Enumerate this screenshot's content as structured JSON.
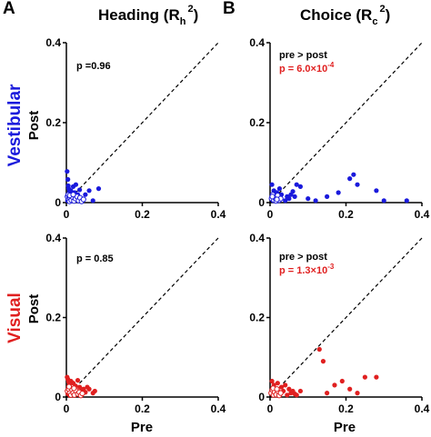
{
  "panel_letters": {
    "a": "A",
    "b": "B"
  },
  "column_titles": {
    "heading": {
      "text": "Heading (R",
      "sub": "h",
      "sup": "2",
      "close": ")"
    },
    "choice": {
      "text": "Choice (R",
      "sub": "c",
      "sup": "2",
      "close": ")"
    }
  },
  "row_labels": {
    "vestibular": {
      "text": "Vestibular",
      "color": "#1a1adc"
    },
    "visual": {
      "text": "Visual",
      "color": "#e02020"
    }
  },
  "axis_labels": {
    "y": "Post",
    "x": "Pre"
  },
  "colors": {
    "vestibular": "#1a1adc",
    "visual": "#e02020",
    "significant_text": "#e02020"
  },
  "panels": {
    "vest_heading": {
      "p_text": "p =0.96"
    },
    "vest_choice": {
      "line1": "pre > post",
      "line2_prefix": "p = 6.0×10",
      "line2_exp": "-4"
    },
    "vis_heading": {
      "p_text": "p = 0.85"
    },
    "vis_choice": {
      "line1": "pre > post",
      "line2_prefix": "p = 1.3×10",
      "line2_exp": "-3"
    }
  },
  "chart_data": [
    {
      "type": "scatter",
      "title": "Heading (Rh²) – Vestibular",
      "xlabel": "",
      "ylabel": "Post",
      "xlim": [
        0,
        0.4
      ],
      "ylim": [
        0,
        0.4
      ],
      "xticks": [
        "0",
        "0.2",
        "0.4"
      ],
      "yticks": [
        "0",
        "0.2",
        "0.4"
      ],
      "reference_line": "y = x (dashed)",
      "series": [
        {
          "style": "filled",
          "color": "#1a1adc",
          "points": [
            [
              0.002,
              0.078
            ],
            [
              0.004,
              0.058
            ],
            [
              0.005,
              0.042
            ],
            [
              0.006,
              0.035
            ],
            [
              0.008,
              0.028
            ],
            [
              0.01,
              0.022
            ],
            [
              0.012,
              0.03
            ],
            [
              0.015,
              0.018
            ],
            [
              0.018,
              0.04
            ],
            [
              0.02,
              0.012
            ],
            [
              0.022,
              0.025
            ],
            [
              0.025,
              0.045
            ],
            [
              0.028,
              0.008
            ],
            [
              0.03,
              0.02
            ],
            [
              0.035,
              0.032
            ],
            [
              0.04,
              0.01
            ],
            [
              0.05,
              0.02
            ],
            [
              0.06,
              0.03
            ],
            [
              0.07,
              0.005
            ],
            [
              0.085,
              0.035
            ],
            [
              0.003,
              0.005
            ],
            [
              0.007,
              0.01
            ],
            [
              0.012,
              0.004
            ],
            [
              0.016,
              0.006
            ]
          ]
        },
        {
          "style": "open",
          "color": "#1a1adc",
          "points": [
            [
              0.003,
              0.015
            ],
            [
              0.006,
              0.008
            ],
            [
              0.008,
              0.003
            ],
            [
              0.01,
              0.012
            ],
            [
              0.013,
              0.006
            ],
            [
              0.016,
              0.014
            ],
            [
              0.02,
              0.004
            ],
            [
              0.024,
              0.01
            ],
            [
              0.028,
              0.015
            ],
            [
              0.032,
              0.005
            ],
            [
              0.036,
              0.012
            ],
            [
              0.04,
              0.003
            ],
            [
              0.045,
              0.008
            ],
            [
              0.005,
              0.02
            ],
            [
              0.009,
              0.018
            ],
            [
              0.018,
              0.02
            ]
          ]
        }
      ]
    },
    {
      "type": "scatter",
      "title": "Choice (Rc²) – Vestibular",
      "xlabel": "",
      "ylabel": "",
      "xlim": [
        0,
        0.4
      ],
      "ylim": [
        0,
        0.4
      ],
      "xticks": [
        "0",
        "0.2",
        "0.4"
      ],
      "yticks": [
        "0",
        "0.2",
        "0.4"
      ],
      "reference_line": "y = x (dashed)",
      "series": [
        {
          "style": "filled",
          "color": "#1a1adc",
          "points": [
            [
              0.005,
              0.045
            ],
            [
              0.01,
              0.03
            ],
            [
              0.012,
              0.015
            ],
            [
              0.018,
              0.025
            ],
            [
              0.02,
              0.01
            ],
            [
              0.025,
              0.035
            ],
            [
              0.03,
              0.02
            ],
            [
              0.04,
              0.005
            ],
            [
              0.045,
              0.015
            ],
            [
              0.05,
              0.01
            ],
            [
              0.055,
              0.02
            ],
            [
              0.06,
              0.028
            ],
            [
              0.065,
              0.015
            ],
            [
              0.07,
              0.045
            ],
            [
              0.08,
              0.04
            ],
            [
              0.1,
              0.01
            ],
            [
              0.12,
              0.005
            ],
            [
              0.15,
              0.015
            ],
            [
              0.18,
              0.025
            ],
            [
              0.21,
              0.06
            ],
            [
              0.22,
              0.07
            ],
            [
              0.23,
              0.045
            ],
            [
              0.28,
              0.03
            ],
            [
              0.3,
              0.005
            ],
            [
              0.36,
              0.005
            ],
            [
              0.008,
              0.005
            ]
          ]
        },
        {
          "style": "open",
          "color": "#1a1adc",
          "points": [
            [
              0.004,
              0.01
            ],
            [
              0.007,
              0.02
            ],
            [
              0.01,
              0.006
            ],
            [
              0.013,
              0.012
            ],
            [
              0.016,
              0.004
            ],
            [
              0.02,
              0.018
            ],
            [
              0.024,
              0.006
            ],
            [
              0.028,
              0.01
            ],
            [
              0.006,
              0.015
            ],
            [
              0.018,
              0.008
            ]
          ]
        }
      ]
    },
    {
      "type": "scatter",
      "title": "Heading (Rh²) – Visual",
      "xlabel": "Pre",
      "ylabel": "Post",
      "xlim": [
        0,
        0.4
      ],
      "ylim": [
        0,
        0.4
      ],
      "xticks": [
        "0",
        "0.2",
        "0.4"
      ],
      "yticks": [
        "0",
        "0.2",
        "0.4"
      ],
      "reference_line": "y = x (dashed)",
      "series": [
        {
          "style": "filled",
          "color": "#e02020",
          "points": [
            [
              0.002,
              0.05
            ],
            [
              0.004,
              0.045
            ],
            [
              0.006,
              0.038
            ],
            [
              0.008,
              0.03
            ],
            [
              0.01,
              0.022
            ],
            [
              0.012,
              0.04
            ],
            [
              0.015,
              0.015
            ],
            [
              0.018,
              0.035
            ],
            [
              0.02,
              0.02
            ],
            [
              0.024,
              0.028
            ],
            [
              0.028,
              0.01
            ],
            [
              0.03,
              0.042
            ],
            [
              0.035,
              0.025
            ],
            [
              0.04,
              0.015
            ],
            [
              0.045,
              0.02
            ],
            [
              0.05,
              0.012
            ],
            [
              0.055,
              0.025
            ],
            [
              0.06,
              0.02
            ],
            [
              0.07,
              0.01
            ],
            [
              0.075,
              0.015
            ],
            [
              0.004,
              0.008
            ],
            [
              0.009,
              0.004
            ]
          ]
        },
        {
          "style": "open",
          "color": "#e02020",
          "points": [
            [
              0.003,
              0.015
            ],
            [
              0.006,
              0.02
            ],
            [
              0.009,
              0.01
            ],
            [
              0.012,
              0.005
            ],
            [
              0.015,
              0.018
            ],
            [
              0.018,
              0.01
            ],
            [
              0.021,
              0.005
            ],
            [
              0.025,
              0.016
            ],
            [
              0.03,
              0.008
            ],
            [
              0.034,
              0.012
            ],
            [
              0.038,
              0.004
            ],
            [
              0.042,
              0.009
            ],
            [
              0.007,
              0.026
            ],
            [
              0.02,
              0.022
            ]
          ]
        }
      ]
    },
    {
      "type": "scatter",
      "title": "Choice (Rc²) – Visual",
      "xlabel": "Pre",
      "ylabel": "",
      "xlim": [
        0,
        0.4
      ],
      "ylim": [
        0,
        0.4
      ],
      "xticks": [
        "0",
        "0.2",
        "0.4"
      ],
      "yticks": [
        "0",
        "0.2",
        "0.4"
      ],
      "reference_line": "y = x (dashed)",
      "series": [
        {
          "style": "filled",
          "color": "#e02020",
          "points": [
            [
              0.005,
              0.04
            ],
            [
              0.01,
              0.03
            ],
            [
              0.015,
              0.02
            ],
            [
              0.02,
              0.035
            ],
            [
              0.025,
              0.01
            ],
            [
              0.03,
              0.025
            ],
            [
              0.035,
              0.015
            ],
            [
              0.04,
              0.03
            ],
            [
              0.045,
              0.005
            ],
            [
              0.05,
              0.02
            ],
            [
              0.055,
              0.01
            ],
            [
              0.06,
              0.015
            ],
            [
              0.065,
              0.008
            ],
            [
              0.07,
              0.005
            ],
            [
              0.13,
              0.12
            ],
            [
              0.14,
              0.09
            ],
            [
              0.15,
              0.01
            ],
            [
              0.17,
              0.03
            ],
            [
              0.19,
              0.04
            ],
            [
              0.21,
              0.02
            ],
            [
              0.23,
              0.01
            ],
            [
              0.25,
              0.05
            ],
            [
              0.28,
              0.05
            ],
            [
              0.08,
              0.015
            ]
          ]
        },
        {
          "style": "open",
          "color": "#e02020",
          "points": [
            [
              0.003,
              0.01
            ],
            [
              0.006,
              0.018
            ],
            [
              0.009,
              0.005
            ],
            [
              0.012,
              0.012
            ],
            [
              0.016,
              0.006
            ],
            [
              0.02,
              0.015
            ],
            [
              0.024,
              0.004
            ],
            [
              0.028,
              0.01
            ],
            [
              0.008,
              0.022
            ],
            [
              0.018,
              0.02
            ]
          ]
        }
      ]
    }
  ]
}
